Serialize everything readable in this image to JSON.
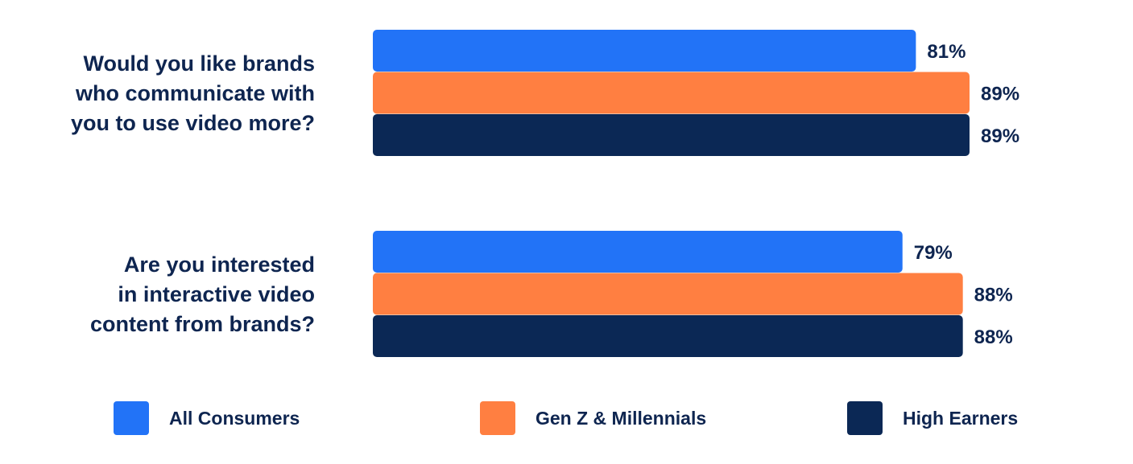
{
  "chart_data": {
    "type": "bar",
    "orientation": "horizontal",
    "categories": [
      [
        "Would you like brands",
        "who communicate with",
        "you to use video more?"
      ],
      [
        "Are you interested",
        "in interactive video",
        "content from brands?"
      ]
    ],
    "series": [
      {
        "name": "All Consumers",
        "color": "#2273f7",
        "values": [
          81,
          79
        ]
      },
      {
        "name": "Gen Z & Millennials",
        "color": "#ff7f41",
        "values": [
          89,
          88
        ]
      },
      {
        "name": "High Earners",
        "color": "#0b2855",
        "values": [
          89,
          88
        ]
      }
    ],
    "value_suffix": "%",
    "xlim": [
      0,
      100
    ],
    "grid": false,
    "legend_position": "bottom"
  }
}
